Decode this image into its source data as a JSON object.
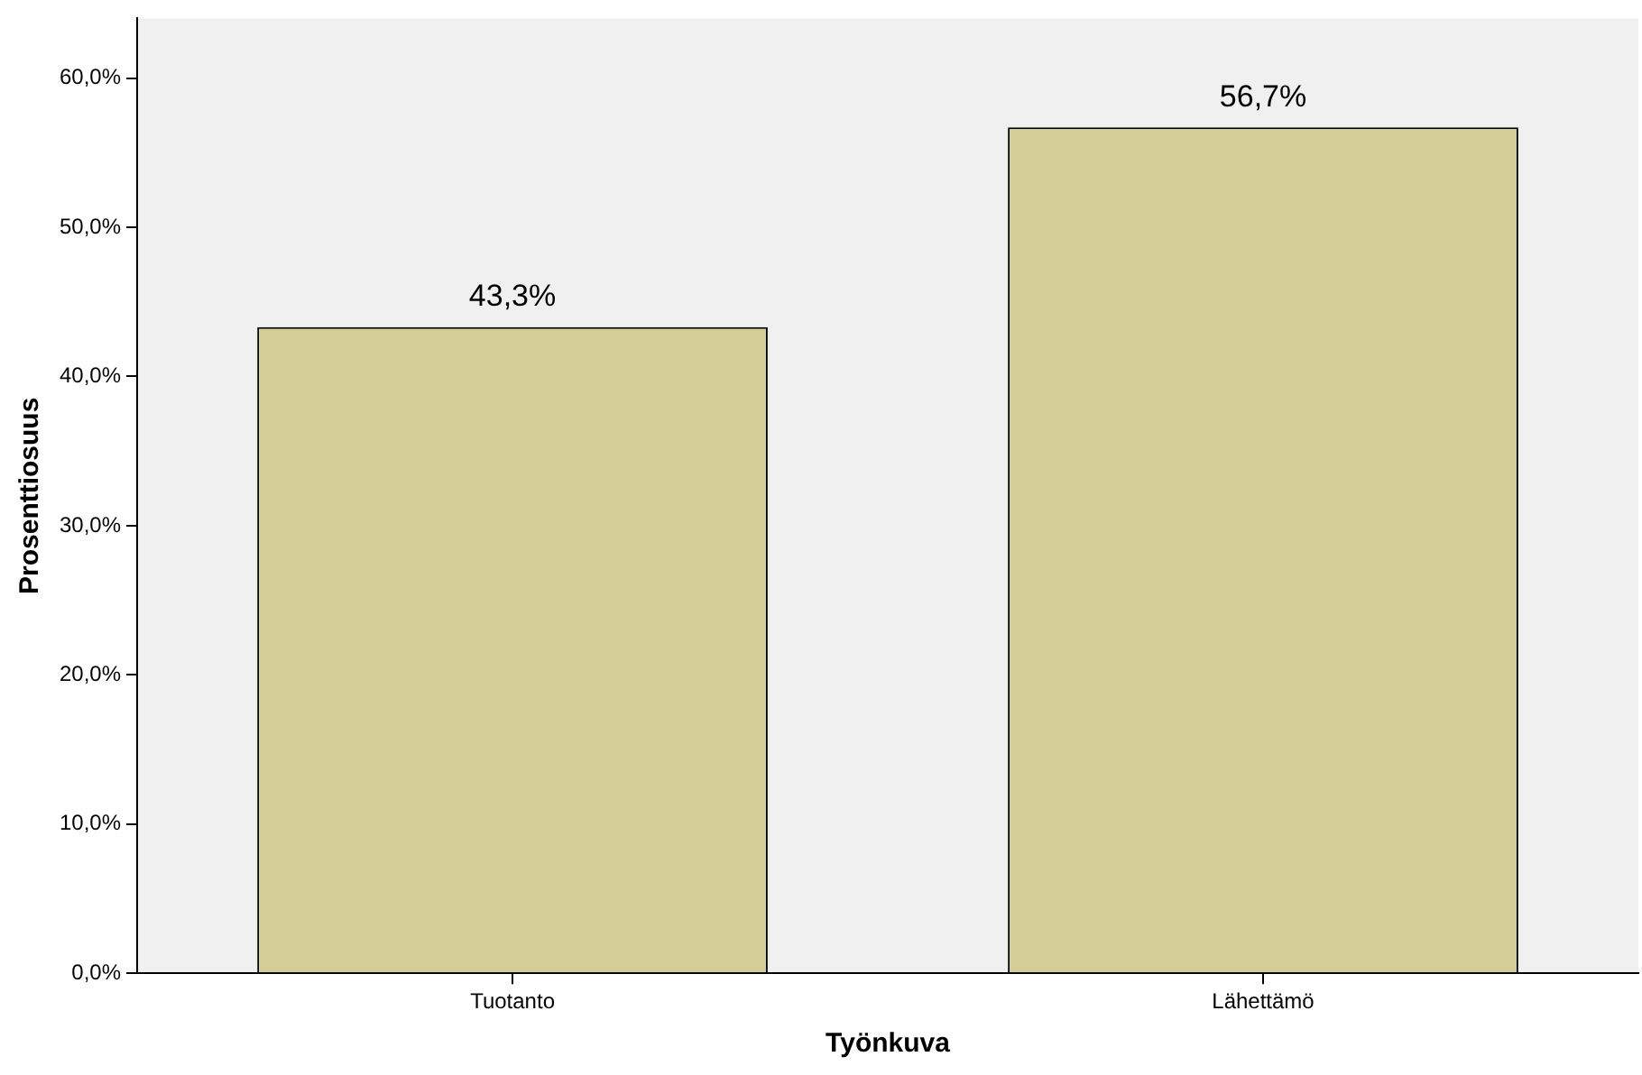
{
  "chart_data": {
    "type": "bar",
    "xlabel": "Työnkuva",
    "ylabel": "Prosenttiosuus",
    "categories": [
      "Tuotanto",
      "Lähettämö"
    ],
    "values": [
      43.3,
      56.7
    ],
    "color": "#d3ce97",
    "value_labels": [
      "43,3%",
      "56,7%"
    ],
    "ylim": [
      0,
      64
    ],
    "yticks": [
      {
        "value": 0,
        "label": "0,0%"
      },
      {
        "value": 10,
        "label": "10,0%"
      },
      {
        "value": 20,
        "label": "20,0%"
      },
      {
        "value": 30,
        "label": "30,0%"
      },
      {
        "value": 40,
        "label": "40,0%"
      },
      {
        "value": 50,
        "label": "50,0%"
      },
      {
        "value": 60,
        "label": "60,0%"
      }
    ],
    "grid": false,
    "legend": false
  }
}
